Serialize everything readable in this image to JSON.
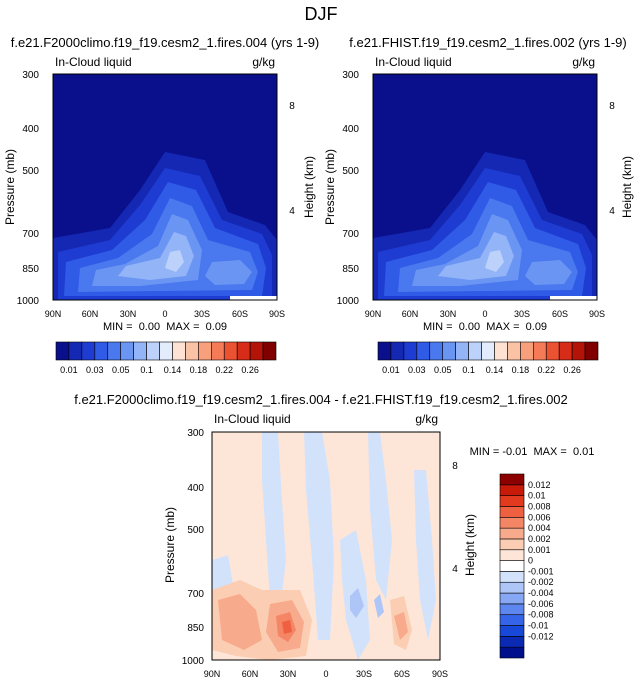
{
  "page_title": "DJF",
  "colors": {
    "abs_scale": [
      "#0a0f8c",
      "#1428b4",
      "#1e3cd2",
      "#2f5be6",
      "#4a78ee",
      "#6b95f3",
      "#94b4f8",
      "#bdd2fb",
      "#e2ecfd",
      "#fde2d3",
      "#fbc3a6",
      "#f8a07c",
      "#f47a58",
      "#ea5232",
      "#d62c18",
      "#b41408",
      "#800000"
    ],
    "diff_scale": [
      "#00108c",
      "#0a2ab4",
      "#1848d8",
      "#3564e8",
      "#5d86ef",
      "#86a7f4",
      "#aec5f8",
      "#d3e2fb",
      "#ffffff",
      "#fde6d8",
      "#fbcdb3",
      "#f8ab8c",
      "#f48666",
      "#ef6040",
      "#e23a1f",
      "#c81a08",
      "#8c0000"
    ]
  },
  "chart_data": [
    {
      "type": "heatmap",
      "title": "f.e21.F2000climo.f19_f19.cesm2_1.fires.004 (yrs 1-9)",
      "field_label": "In-Cloud liquid",
      "units": "g/kg",
      "ylabel": "Pressure (mb)",
      "ylabel_right": "Height (km)",
      "x_ticks": [
        "90N",
        "60N",
        "30N",
        "0",
        "30S",
        "60S",
        "90S"
      ],
      "y_ticks": [
        "300",
        "400",
        "500",
        "700",
        "850",
        "1000"
      ],
      "y_ticks_right": [
        "8",
        "4"
      ],
      "stats": "MIN =  0.00  MAX =  0.09",
      "colorbar_labels": [
        "0.01",
        "0.03",
        "0.05",
        "0.1",
        "0.14",
        "0.18",
        "0.22",
        "0.26"
      ]
    },
    {
      "type": "heatmap",
      "title": "f.e21.FHIST.f19_f19.cesm2_1.fires.002 (yrs 1-9)",
      "field_label": "In-Cloud liquid",
      "units": "g/kg",
      "ylabel": "Pressure (mb)",
      "ylabel_right": "Height (km)",
      "x_ticks": [
        "90N",
        "60N",
        "30N",
        "0",
        "30S",
        "60S",
        "90S"
      ],
      "y_ticks": [
        "300",
        "400",
        "500",
        "700",
        "850",
        "1000"
      ],
      "y_ticks_right": [
        "8",
        "4"
      ],
      "stats": "MIN =  0.00  MAX =  0.09",
      "colorbar_labels": [
        "0.01",
        "0.03",
        "0.05",
        "0.1",
        "0.14",
        "0.18",
        "0.22",
        "0.26"
      ]
    },
    {
      "type": "heatmap",
      "title": "f.e21.F2000climo.f19_f19.cesm2_1.fires.004 - f.e21.FHIST.f19_f19.cesm2_1.fires.002",
      "field_label": "In-Cloud liquid",
      "units": "g/kg",
      "ylabel": "Pressure (mb)",
      "ylabel_right": "Height (km)",
      "x_ticks": [
        "90N",
        "60N",
        "30N",
        "0",
        "30S",
        "60S",
        "90S"
      ],
      "y_ticks": [
        "300",
        "400",
        "500",
        "700",
        "850",
        "1000"
      ],
      "y_ticks_right": [
        "8",
        "4"
      ],
      "stats": "MIN = -0.01  MAX =  0.01",
      "colorbar_labels": [
        "0.012",
        "0.01",
        "0.008",
        "0.006",
        "0.004",
        "0.002",
        "0.001",
        "0",
        "-0.001",
        "-0.002",
        "-0.004",
        "-0.006",
        "-0.008",
        "-0.01",
        "-0.012"
      ]
    }
  ]
}
